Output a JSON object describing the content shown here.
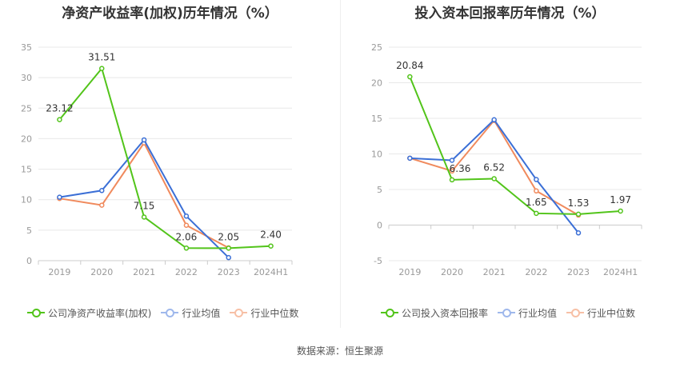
{
  "source": "数据来源：恒生聚源",
  "colors": {
    "company": "#52c41a",
    "industry_avg": "#3b6fd6",
    "industry_median": "#f08a5d",
    "grid": "#e8e8e8",
    "axis_text": "#999999"
  },
  "chart_data": [
    {
      "type": "line",
      "title": "净资产收益率(加权)历年情况（%）",
      "x": [
        "2019",
        "2020",
        "2021",
        "2022",
        "2023",
        "2024H1"
      ],
      "ylim": [
        0,
        35
      ],
      "yticks": [
        0,
        5,
        10,
        15,
        20,
        25,
        30,
        35
      ],
      "grid": true,
      "legend_position": "bottom-left",
      "series": [
        {
          "name": "公司净资产收益率(加权)",
          "color": "#52c41a",
          "values": [
            23.12,
            31.51,
            7.15,
            2.06,
            2.05,
            2.4
          ],
          "labels": [
            "23.12",
            "31.51",
            "7.15",
            "2.06",
            "2.05",
            "2.40"
          ]
        },
        {
          "name": "行业均值",
          "color": "#3b6fd6",
          "values": [
            10.4,
            11.5,
            19.8,
            7.3,
            0.5,
            null
          ]
        },
        {
          "name": "行业中位数",
          "color": "#f08a5d",
          "values": [
            10.2,
            9.1,
            19.3,
            5.8,
            2.1,
            null
          ]
        }
      ]
    },
    {
      "type": "line",
      "title": "投入资本回报率历年情况（%）",
      "x": [
        "2019",
        "2020",
        "2021",
        "2022",
        "2023",
        "2024H1"
      ],
      "ylim": [
        -5,
        25
      ],
      "yticks": [
        -5,
        0,
        5,
        10,
        15,
        20,
        25
      ],
      "grid": true,
      "legend_position": "bottom-left",
      "series": [
        {
          "name": "公司投入资本回报率",
          "color": "#52c41a",
          "values": [
            20.84,
            6.36,
            6.52,
            1.65,
            1.53,
            1.97
          ],
          "labels": [
            "20.84",
            "6.36",
            "6.52",
            "1.65",
            "1.53",
            "1.97"
          ]
        },
        {
          "name": "行业均值",
          "color": "#3b6fd6",
          "values": [
            9.4,
            9.1,
            14.8,
            6.4,
            -1.1,
            null
          ]
        },
        {
          "name": "行业中位数",
          "color": "#f08a5d",
          "values": [
            9.4,
            7.6,
            14.7,
            4.8,
            1.4,
            null
          ]
        }
      ]
    }
  ]
}
